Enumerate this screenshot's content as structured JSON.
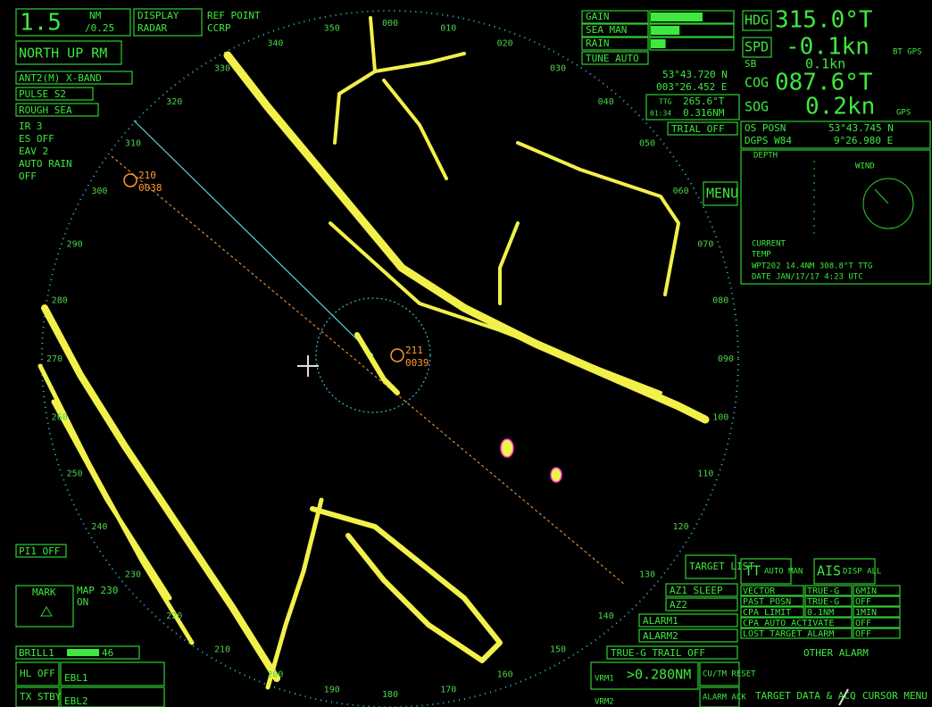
{
  "top_left": {
    "range": "1.5",
    "range_unit": "NM",
    "ring_interval": "/0.25",
    "display": "DISPLAY",
    "display_mode": "RADAR",
    "ref_point": "REF POINT",
    "ref_mode": "CCRP"
  },
  "left_panel": {
    "orientation": "NORTH UP RM",
    "antenna": "ANT2(M) X-BAND",
    "pulse": "PULSE S2",
    "mode": "ROUGH SEA",
    "settings": [
      "IR 3",
      "ES  OFF",
      "EAV 2",
      "AUTO RAIN",
      "OFF"
    ]
  },
  "gain_panel": {
    "rows": [
      {
        "label": "GAIN",
        "value": 63
      },
      {
        "label": "SEA MAN",
        "value": 35
      },
      {
        "label": "RAIN",
        "value": 18
      }
    ],
    "tune": "TUNE AUTO"
  },
  "cursor_pos": {
    "lat": "53°43.720 N",
    "lon": "003°26.452 E",
    "ttg_label": "TTG",
    "ttg_brg": "265.6°T",
    "ttg_time": "01:34",
    "ttg_dist": "0.316NM"
  },
  "trial": "TRIAL OFF",
  "menu": "MENU",
  "nav": {
    "hdg_label": "HDG",
    "hdg": "315.0°T",
    "spd_label": "SPD",
    "spd": "-0.1kn",
    "spd_src": "BT GPS",
    "sb_label": "SB",
    "sb": "0.1kn",
    "cog_label": "COG",
    "cog": "087.6°T",
    "sog_label": "SOG",
    "sog": "0.2kn",
    "sog_src": "GPS"
  },
  "own_position": {
    "label": "OS POSN",
    "source": "DGPS W84",
    "lat": "53°43.745 N",
    "lon": "9°26.980 E"
  },
  "sensor_panel": {
    "depth": "DEPTH",
    "wind": "WIND",
    "current": "CURRENT",
    "temp": "TEMP",
    "wpt": "WPT202  14.4NM 308.8°T TTG",
    "date": "DATE JAN/17/17  4:23 UTC"
  },
  "bearing_labels": [
    "000",
    "010",
    "020",
    "030",
    "040",
    "050",
    "060",
    "070",
    "080",
    "090",
    "100",
    "110",
    "120",
    "130",
    "140",
    "150",
    "160",
    "170",
    "180",
    "190",
    "200",
    "210",
    "220",
    "230",
    "240",
    "250",
    "260",
    "270",
    "280",
    "290",
    "300",
    "310",
    "320",
    "330",
    "340",
    "350"
  ],
  "targets": [
    {
      "id": "210",
      "number": "0038"
    },
    {
      "id": "211",
      "number": "0039"
    }
  ],
  "pi": "PI1 OFF",
  "mark": "MARK",
  "map": "MAP 230",
  "map_state": "ON",
  "brill": {
    "label": "BRILL1",
    "value": "46"
  },
  "bottom_left": {
    "hl": "HL OFF",
    "ebl1": "EBL1",
    "tx": "TX STBY",
    "ebl2": "EBL2"
  },
  "bottom": {
    "vrm1": "VRM1",
    "vrm1_value": ">0.280NM",
    "vrm2": "VRM2",
    "cu_tm": "CU/TM RESET",
    "alarm_ack": "ALARM ACK",
    "target_data": "TARGET DATA & ACQ",
    "cursor_menu": "CURSOR MENU"
  },
  "right_lower": {
    "target_list": "TARGET LIST",
    "az1": "AZ1 SLEEP",
    "az2": "AZ2",
    "alarm1": "ALARM1",
    "alarm2": "ALARM2",
    "trail": "TRUE-G TRAIL OFF",
    "tt": "TT",
    "tt_mode": "AUTO MAN",
    "ais": "AIS",
    "ais_mode": "DISP ALL",
    "rows": [
      [
        "VECTOR",
        "TRUE-G",
        "6MIN"
      ],
      [
        "PAST POSN",
        "TRUE-G",
        "OFF"
      ],
      [
        "CPA LIMIT",
        "0.1NM",
        "1MIN"
      ],
      [
        "CPA AUTO ACTIVATE",
        "OFF"
      ],
      [
        "LOST TARGET ALARM",
        "OFF"
      ]
    ],
    "other_alarm": "OTHER ALARM"
  }
}
